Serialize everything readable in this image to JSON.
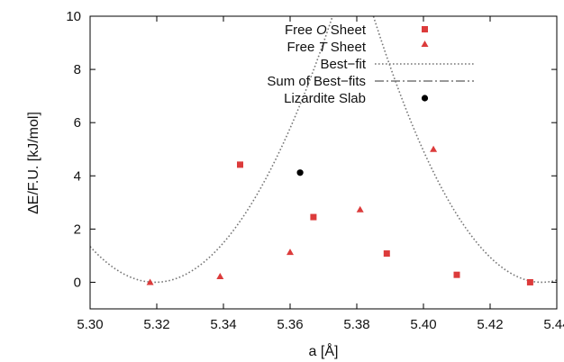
{
  "chart_data": {
    "type": "scatter",
    "xlabel": "a [Å]",
    "ylabel": "ΔE/F.U. [kJ/mol]",
    "xlim": [
      5.3,
      5.44
    ],
    "ylim": [
      -1,
      10
    ],
    "xticks": [
      5.3,
      5.32,
      5.34,
      5.36,
      5.38,
      5.4,
      5.42,
      5.44
    ],
    "xtick_labels": [
      "5.30",
      "5.32",
      "5.34",
      "5.36",
      "5.38",
      "5.40",
      "5.42",
      "5.44"
    ],
    "yticks": [
      0,
      2,
      4,
      6,
      8,
      10
    ],
    "ytick_labels": [
      "0",
      "2",
      "4",
      "6",
      "8",
      "10"
    ],
    "grid": false,
    "legend_position": "top-center",
    "legend": {
      "free_o_prefix": "Free ",
      "free_o_italic": "O",
      "free_o_suffix": " Sheet",
      "free_t_prefix": "Free ",
      "free_t_italic": "T",
      "free_t_suffix": " Sheet",
      "best_fit": "Best−fit",
      "sum_best_fits": "Sum of Best−fits",
      "lizardite": "Lizardite Slab"
    },
    "series": [
      {
        "name": "Free O Sheet",
        "marker": "square",
        "color": "#dc3b3b",
        "points": [
          [
            5.345,
            4.42
          ],
          [
            5.367,
            2.45
          ],
          [
            5.389,
            1.08
          ],
          [
            5.41,
            0.28
          ],
          [
            5.432,
            0.0
          ]
        ]
      },
      {
        "name": "Free T Sheet",
        "marker": "triangle",
        "color": "#dc3b3b",
        "points": [
          [
            5.318,
            0.0
          ],
          [
            5.339,
            0.22
          ],
          [
            5.36,
            1.13
          ],
          [
            5.381,
            2.73
          ],
          [
            5.403,
            5.0
          ]
        ]
      },
      {
        "name": "Lizardite Slab",
        "marker": "circle",
        "color": "#000000",
        "points": [
          [
            5.363,
            4.12
          ]
        ]
      }
    ],
    "fits": {
      "o_sheet": {
        "x0": 5.4355,
        "k": 3920
      },
      "t_sheet": {
        "x0": 5.3195,
        "k": 3530
      }
    },
    "fit_line_color": "#777777"
  }
}
